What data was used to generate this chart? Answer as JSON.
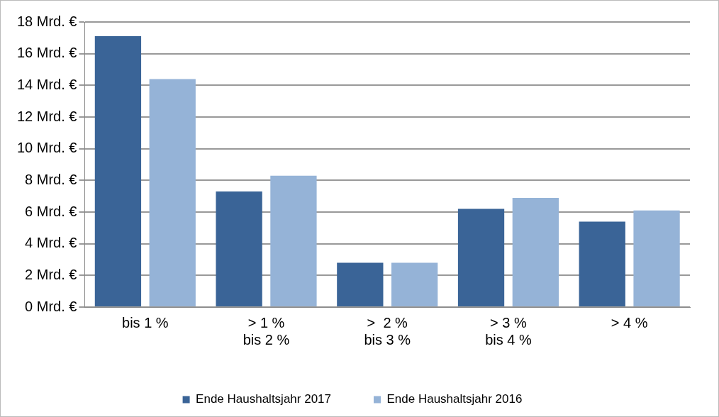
{
  "chart_data": {
    "type": "bar",
    "categories": [
      "bis 1 %",
      "> 1 %\nbis 2 %",
      ">  2 %\nbis 3 %",
      "> 3 %\nbis 4 %",
      "> 4 %"
    ],
    "series": [
      {
        "name": "Ende Haushaltsjahr 2017",
        "color": "#3a6497",
        "values": [
          17.1,
          7.3,
          2.8,
          6.2,
          5.4
        ]
      },
      {
        "name": "Ende Haushaltsjahr 2016",
        "color": "#95b3d7",
        "values": [
          14.4,
          8.3,
          2.8,
          6.9,
          6.1
        ]
      }
    ],
    "ylim": [
      0,
      18
    ],
    "yticks": [
      {
        "value": 0,
        "label": "0 Mrd. €"
      },
      {
        "value": 2,
        "label": "2 Mrd. €"
      },
      {
        "value": 4,
        "label": "4 Mrd. €"
      },
      {
        "value": 6,
        "label": "6 Mrd. €"
      },
      {
        "value": 8,
        "label": "8 Mrd. €"
      },
      {
        "value": 10,
        "label": "10 Mrd. €"
      },
      {
        "value": 12,
        "label": "12 Mrd. €"
      },
      {
        "value": 14,
        "label": "14 Mrd. €"
      },
      {
        "value": 16,
        "label": "16 Mrd. €"
      },
      {
        "value": 18,
        "label": "18 Mrd. €"
      }
    ],
    "grid": "y",
    "legend": "bottom"
  }
}
